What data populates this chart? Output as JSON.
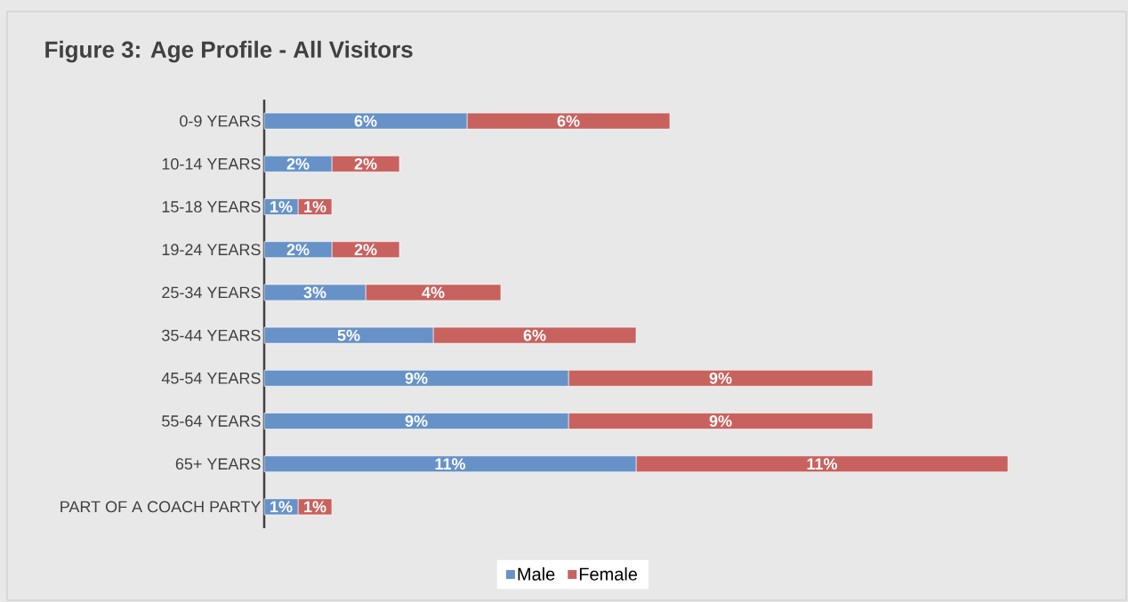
{
  "chart_data": {
    "type": "bar",
    "title": "Figure 3: Age Profile - All Visitors",
    "orientation": "horizontal",
    "stacked": true,
    "legend": "bottom",
    "categories": [
      "0-9 YEARS",
      "10-14 YEARS",
      "15-18 YEARS",
      "19-24 YEARS",
      "25-34 YEARS",
      "35-44 YEARS",
      "45-54 YEARS",
      "55-64 YEARS",
      "65+ YEARS",
      "PART OF A COACH PARTY"
    ],
    "series": [
      {
        "name": "Male",
        "color": "#6792c8",
        "values": [
          6,
          2,
          1,
          2,
          3,
          5,
          9,
          9,
          11,
          1
        ],
        "value_labels": [
          "6%",
          "2%",
          "1%",
          "2%",
          "3%",
          "5%",
          "9%",
          "9%",
          "11%",
          "1%"
        ]
      },
      {
        "name": "Female",
        "color": "#c8625f",
        "values": [
          6,
          2,
          1,
          2,
          4,
          6,
          9,
          9,
          11,
          1
        ],
        "value_labels": [
          "6%",
          "2%",
          "1%",
          "2%",
          "4%",
          "6%",
          "9%",
          "9%",
          "11%",
          "1%"
        ]
      }
    ]
  }
}
